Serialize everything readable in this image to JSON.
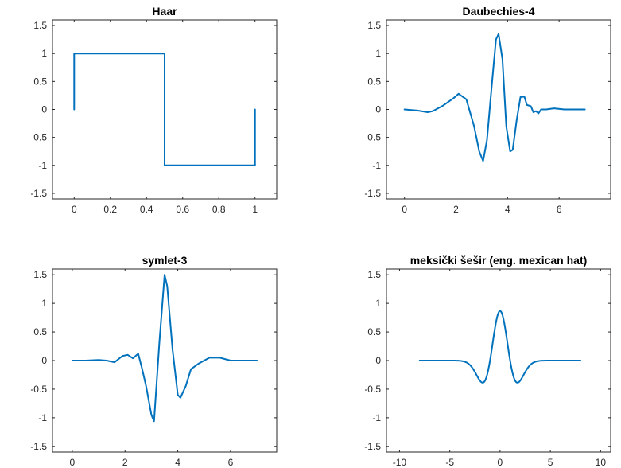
{
  "chart_data": [
    {
      "type": "line",
      "title": "Haar",
      "xlim": [
        -0.12,
        1.12
      ],
      "ylim": [
        -1.6,
        1.6
      ],
      "xticks": [
        0,
        0.2,
        0.4,
        0.6,
        0.8,
        1
      ],
      "xtick_labels": [
        "0",
        "0.2",
        "0.4",
        "0.6",
        "0.8",
        "1"
      ],
      "yticks": [
        1.5,
        1,
        0.5,
        0,
        -0.5,
        -1,
        -1.5
      ],
      "ytick_labels": [
        "1.5",
        "1",
        "0.5",
        "0",
        "-0.5",
        "-1",
        "-1.5"
      ],
      "grid": true,
      "series": [
        {
          "x": [
            0,
            0,
            0.5,
            0.5,
            1,
            1
          ],
          "y": [
            0,
            1,
            1,
            -1,
            -1,
            0
          ]
        }
      ]
    },
    {
      "type": "line",
      "title": "Daubechies-4",
      "xlim": [
        -0.7,
        8.0
      ],
      "ylim": [
        -1.6,
        1.6
      ],
      "xticks": [
        0,
        2,
        4,
        6
      ],
      "xtick_labels": [
        "0",
        "2",
        "4",
        "6"
      ],
      "yticks": [
        1.5,
        1,
        0.5,
        0,
        -0.5,
        -1,
        -1.5
      ],
      "ytick_labels": [
        "1.5",
        "1",
        "0.5",
        "0",
        "-0.5",
        "-1",
        "-1.5"
      ],
      "grid": true,
      "series": [
        {
          "x": [
            0,
            0.5,
            0.9,
            1.1,
            1.5,
            1.9,
            2.1,
            2.4,
            2.7,
            2.9,
            3.05,
            3.2,
            3.4,
            3.55,
            3.65,
            3.8,
            3.95,
            4.1,
            4.2,
            4.35,
            4.5,
            4.65,
            4.75,
            4.9,
            5.0,
            5.1,
            5.2,
            5.3,
            5.5,
            5.8,
            6.2,
            7.0
          ],
          "y": [
            0,
            -0.02,
            -0.05,
            -0.03,
            0.07,
            0.2,
            0.28,
            0.18,
            -0.3,
            -0.75,
            -0.92,
            -0.55,
            0.5,
            1.25,
            1.35,
            0.9,
            -0.3,
            -0.75,
            -0.72,
            -0.2,
            0.22,
            0.23,
            0.08,
            0.06,
            -0.05,
            -0.03,
            -0.07,
            0.0,
            0.0,
            0.02,
            0.0,
            0.0
          ]
        }
      ]
    },
    {
      "type": "line",
      "title": "symlet-3",
      "xlim": [
        -0.75,
        7.75
      ],
      "ylim": [
        -1.6,
        1.6
      ],
      "xticks": [
        0,
        2,
        4,
        6
      ],
      "xtick_labels": [
        "0",
        "2",
        "4",
        "6"
      ],
      "yticks": [
        1.5,
        1,
        0.5,
        0,
        -0.5,
        -1,
        -1.5
      ],
      "ytick_labels": [
        "1.5",
        "1",
        "0.5",
        "0",
        "-0.5",
        "-1",
        "-1.5"
      ],
      "grid": true,
      "series": [
        {
          "x": [
            0,
            0.5,
            1.0,
            1.3,
            1.6,
            1.9,
            2.1,
            2.3,
            2.5,
            2.65,
            2.8,
            3.0,
            3.1,
            3.3,
            3.5,
            3.6,
            3.8,
            4.0,
            4.1,
            4.3,
            4.5,
            4.8,
            5.2,
            5.6,
            6.0,
            6.5,
            7.0
          ],
          "y": [
            0,
            0,
            0.01,
            0,
            -0.03,
            0.08,
            0.1,
            0.04,
            0.12,
            -0.15,
            -0.45,
            -0.95,
            -1.06,
            0.3,
            1.5,
            1.3,
            0.2,
            -0.6,
            -0.65,
            -0.45,
            -0.15,
            -0.05,
            0.05,
            0.05,
            0.0,
            0.0,
            0.0
          ]
        }
      ]
    },
    {
      "type": "line",
      "title": "meksički šešir (eng. mexican hat)",
      "xlim": [
        -11.3,
        11.0
      ],
      "ylim": [
        -1.6,
        1.6
      ],
      "xticks": [
        -10,
        -5,
        0,
        5,
        10
      ],
      "xtick_labels": [
        "-10",
        "-5",
        "0",
        "5",
        "10"
      ],
      "yticks": [
        1.5,
        1,
        0.5,
        0,
        -0.5,
        -1,
        -1.5
      ],
      "ytick_labels": [
        "1.5",
        "1",
        "0.5",
        "0",
        "-0.5",
        "-1",
        "-1.5"
      ],
      "grid": true,
      "series": [
        {
          "formula": "mexican_hat",
          "x_start": -8,
          "x_end": 8,
          "amplitude": 0.8673
        }
      ]
    }
  ],
  "colors": {
    "line": "#0072bd"
  }
}
